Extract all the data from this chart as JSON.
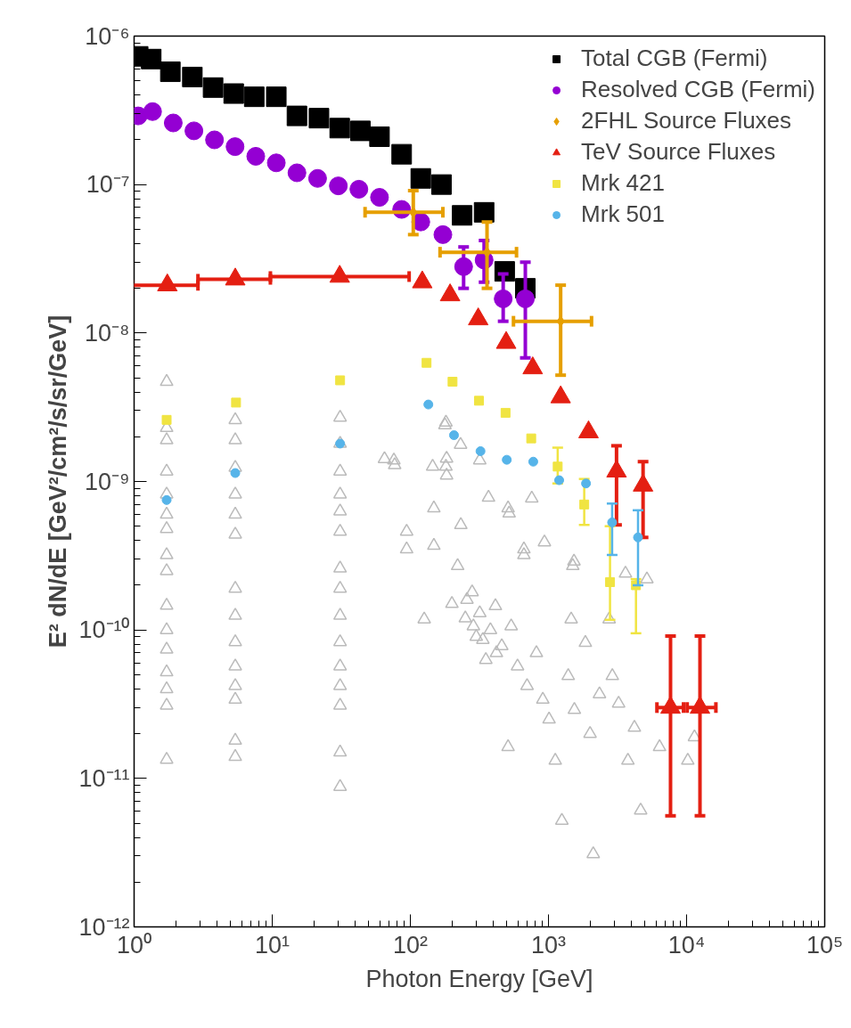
{
  "chart_data": {
    "type": "scatter",
    "xlabel": "Photon Energy [GeV]",
    "ylabel": "E² dN/dE [GeV²/cm²/s/sr/GeV]",
    "log": "xy",
    "grid": false,
    "legend": "top right",
    "xlim": [
      1,
      100000
    ],
    "ylim": [
      1e-12,
      1e-06
    ],
    "xticks": [
      {
        "value": 1,
        "label": "10⁰"
      },
      {
        "value": 10,
        "label": "10¹"
      },
      {
        "value": 100,
        "label": "10²"
      },
      {
        "value": 1000,
        "label": "10³"
      },
      {
        "value": 10000,
        "label": "10⁴"
      },
      {
        "value": 100000,
        "label": "10⁵"
      }
    ],
    "yticks": [
      {
        "value": 1e-12,
        "label": "10⁻¹²"
      },
      {
        "value": 1e-11,
        "label": "10⁻¹¹"
      },
      {
        "value": 1e-10,
        "label": "10⁻¹⁰"
      },
      {
        "value": 1e-09,
        "label": "10⁻⁹"
      },
      {
        "value": 1e-08,
        "label": "10⁻⁸"
      },
      {
        "value": 1e-07,
        "label": "10⁻⁷"
      },
      {
        "value": 1e-06,
        "label": "10⁻⁶"
      }
    ],
    "series": [
      {
        "name": "Total CGB (Fermi)",
        "color": "#000000",
        "marker": "square",
        "x": [
          1.07,
          1.33,
          1.83,
          2.64,
          3.73,
          5.26,
          7.41,
          10.7,
          15.1,
          21.8,
          30.8,
          43.5,
          59.8,
          86.5,
          119,
          168,
          237,
          342,
          482,
          680
        ],
        "values": [
          7.3e-07,
          7e-07,
          5.75e-07,
          5.3e-07,
          4.5e-07,
          4.1e-07,
          3.9e-07,
          3.9e-07,
          2.9e-07,
          2.8e-07,
          2.4e-07,
          2.3e-07,
          2.1e-07,
          1.6e-07,
          1.1e-07,
          1e-07,
          6.2e-08,
          6.5e-08,
          2.6e-08,
          2e-08
        ]
      },
      {
        "name": "Resolved CGB (Fermi)",
        "color": "#9400d3",
        "marker": "circle",
        "x": [
          1.07,
          1.36,
          1.92,
          2.71,
          3.82,
          5.38,
          7.6,
          10.7,
          15.1,
          21.3,
          30.1,
          42.4,
          59.8,
          86.5,
          119,
          172,
          243,
          342,
          470,
          680
        ],
        "values": [
          2.9e-07,
          3.1e-07,
          2.6e-07,
          2.3e-07,
          2e-07,
          1.8e-07,
          1.55e-07,
          1.4e-07,
          1.2e-07,
          1.1e-07,
          9.8e-08,
          9.3e-08,
          8.2e-08,
          6.8e-08,
          5.6e-08,
          4.6e-08,
          2.8e-08,
          3.1e-08,
          1.7e-08,
          1.7e-08
        ],
        "errors": [
          null,
          null,
          null,
          null,
          null,
          null,
          null,
          null,
          null,
          null,
          null,
          null,
          null,
          null,
          null,
          null,
          [
            2e-08,
            3.8e-08
          ],
          [
            2.2e-08,
            4.2e-08
          ],
          [
            1.2e-08,
            2.5e-08
          ],
          [
            6.8e-09,
            3e-08
          ]
        ]
      },
      {
        "name": "2FHL Source Fluxes",
        "color": "#e69f00",
        "marker": "diamond",
        "x": [
          105,
          359,
          1225
        ],
        "values": [
          6.5e-08,
          3.5e-08,
          1.2e-08
        ],
        "errors": [
          [
            4.6e-08,
            9.1e-08
          ],
          [
            2e-08,
            5.6e-08
          ],
          [
            5.2e-09,
            2.1e-08
          ]
        ],
        "xerrors": [
          [
            47,
            172
          ],
          [
            164,
            587
          ],
          [
            558,
            2050
          ]
        ]
      },
      {
        "name": "TeV Source Fluxes",
        "color": "#e41f12",
        "marker": "triangle",
        "x": [
          1.74,
          5.4,
          30.8,
          122,
          194,
          310,
          494,
          769,
          1225,
          1950,
          3110,
          4840,
          7650,
          12500
        ],
        "values": [
          2.1e-08,
          2.3e-08,
          2.4e-08,
          2.2e-08,
          1.8e-08,
          1.24e-08,
          8.6e-09,
          5.8e-09,
          3.7e-09,
          2.15e-09,
          1.17e-09,
          9.4e-10,
          3e-11,
          3e-11
        ],
        "errors": [
          null,
          null,
          null,
          null,
          null,
          null,
          null,
          null,
          null,
          null,
          [
            5.1e-10,
            1.74e-09
          ],
          [
            4.2e-10,
            1.36e-09
          ],
          [
            5.6e-12,
            9.1e-11
          ],
          [
            5.6e-12,
            9.1e-11
          ]
        ],
        "xerrors": [
          [
            0.97,
            2.9
          ],
          [
            2.9,
            9.7
          ],
          [
            9.7,
            98
          ],
          null,
          null,
          null,
          null,
          null,
          null,
          null,
          null,
          null,
          [
            6100,
            9500
          ],
          [
            10100,
            16300
          ]
        ]
      },
      {
        "name": "Mrk 421",
        "color": "#f0e442",
        "marker": "square",
        "x": [
          1.72,
          5.47,
          31,
          131,
          202,
          314,
          489,
          750,
          1166,
          1815,
          2790,
          4300
        ],
        "values": [
          2.6e-09,
          3.4e-09,
          4.8e-09,
          6.3e-09,
          4.7e-09,
          3.5e-09,
          2.9e-09,
          1.95e-09,
          1.26e-09,
          7e-10,
          2.1e-10,
          2e-10
        ],
        "errors": [
          null,
          null,
          null,
          null,
          null,
          null,
          null,
          null,
          [
            9.7e-10,
            1.69e-09
          ],
          [
            5.1e-10,
            1.04e-09
          ],
          [
            1.17e-10,
            5e-10
          ],
          [
            9.5e-11,
            2.2e-10
          ]
        ]
      },
      {
        "name": "Mrk 501",
        "color": "#56b4e9",
        "marker": "circle",
        "x": [
          1.72,
          5.4,
          31,
          135,
          207,
          322,
          499,
          776,
          1195,
          1870,
          2890,
          4450
        ],
        "values": [
          7.5e-10,
          1.14e-09,
          1.8e-09,
          3.3e-09,
          2.05e-09,
          1.6e-09,
          1.4e-09,
          1.36e-09,
          1.02e-09,
          9.7e-10,
          5.3e-10,
          4.2e-10
        ],
        "errors": [
          null,
          null,
          null,
          null,
          null,
          null,
          null,
          null,
          null,
          null,
          [
            3.2e-10,
            7.1e-10
          ],
          [
            2e-10,
            6.4e-10
          ]
        ]
      },
      {
        "color": "#bbbbbb",
        "marker": "triangle",
        "x": [
          1.72,
          1.72,
          1.72,
          1.72,
          1.72,
          1.72,
          1.72,
          1.72,
          1.72,
          1.72,
          1.72,
          1.72,
          1.72,
          1.72,
          1.72,
          1.72,
          5.4,
          5.4,
          5.4,
          5.4,
          5.4,
          5.4,
          5.4,
          5.4,
          5.4,
          5.4,
          5.4,
          5.4,
          5.4,
          5.4,
          31,
          31,
          31,
          31,
          31,
          31,
          31,
          31,
          31,
          31,
          31,
          31,
          31,
          31,
          31,
          77,
          94,
          94,
          126,
          148,
          148,
          178,
          183,
          183,
          232,
          220,
          257,
          286,
          318,
          335,
          352,
          413,
          459,
          510,
          510,
          537,
          597,
          664,
          700,
          757,
          818,
          910,
          1010,
          1120,
          1250,
          1390,
          1500,
          1460,
          1540,
          1850,
          2000,
          2110,
          2340,
          2750,
          2900,
          3220,
          3760,
          4190,
          4650,
          5160,
          6370,
          10200,
          11400,
          76,
          145,
          181,
          181,
          231,
          318,
          368,
          519,
          664,
          935,
          1530,
          65,
          3610,
          200,
          250,
          280,
          300,
          380,
          420
        ],
        "values": [
          4.7e-09,
          2.3e-09,
          1.9e-09,
          1.17e-09,
          8.2e-10,
          6e-10,
          4.8e-10,
          3.2e-10,
          2.5e-10,
          1.46e-10,
          1e-10,
          7.4e-11,
          5.2e-11,
          4e-11,
          3.1e-11,
          1.34e-11,
          2.6e-09,
          1.9e-09,
          1.24e-09,
          8.2e-10,
          6e-10,
          4.4e-10,
          1.9e-10,
          1.25e-10,
          8.3e-11,
          5.7e-11,
          4.2e-11,
          3.4e-11,
          1.8e-11,
          1.4e-11,
          2.7e-09,
          1.8e-09,
          1.17e-09,
          8.2e-10,
          6.3e-10,
          4.6e-10,
          2.6e-10,
          1.9e-10,
          1.25e-10,
          8.3e-11,
          5.7e-11,
          4.2e-11,
          3.1e-11,
          1.5e-11,
          8.8e-12,
          1.29e-09,
          4.6e-10,
          3.5e-10,
          1.18e-10,
          3.7e-10,
          6.6e-10,
          2.4e-09,
          1.43e-09,
          1.1e-09,
          5.1e-10,
          2.7e-10,
          1.6e-10,
          1.06e-10,
          1.3e-10,
          8.6e-11,
          6.3e-11,
          1.45e-10,
          7.8e-11,
          6.6e-10,
          1.63e-11,
          1.06e-10,
          5.7e-11,
          3.5e-10,
          4.2e-11,
          7.7e-10,
          7e-11,
          3.4e-11,
          2.5e-11,
          1.32e-11,
          5.2e-12,
          4.9e-11,
          2.7e-10,
          1.18e-10,
          2.9e-11,
          8.2e-11,
          2e-11,
          3.1e-12,
          3.7e-11,
          1.18e-10,
          4.9e-11,
          3.2e-11,
          1.32e-11,
          2.2e-11,
          6.1e-12,
          2.2e-10,
          1.63e-11,
          1.32e-11,
          1.9e-11,
          1.39e-09,
          1.26e-09,
          2.5e-09,
          1.26e-09,
          1.77e-09,
          1.39e-09,
          7.8e-10,
          6.1e-10,
          3.2e-10,
          3.9e-10,
          2.9e-10,
          1.42e-09,
          2.4e-10,
          1.5e-10,
          1.2e-10,
          1.8e-10,
          9e-11,
          1e-10,
          7e-11
        ]
      }
    ]
  }
}
